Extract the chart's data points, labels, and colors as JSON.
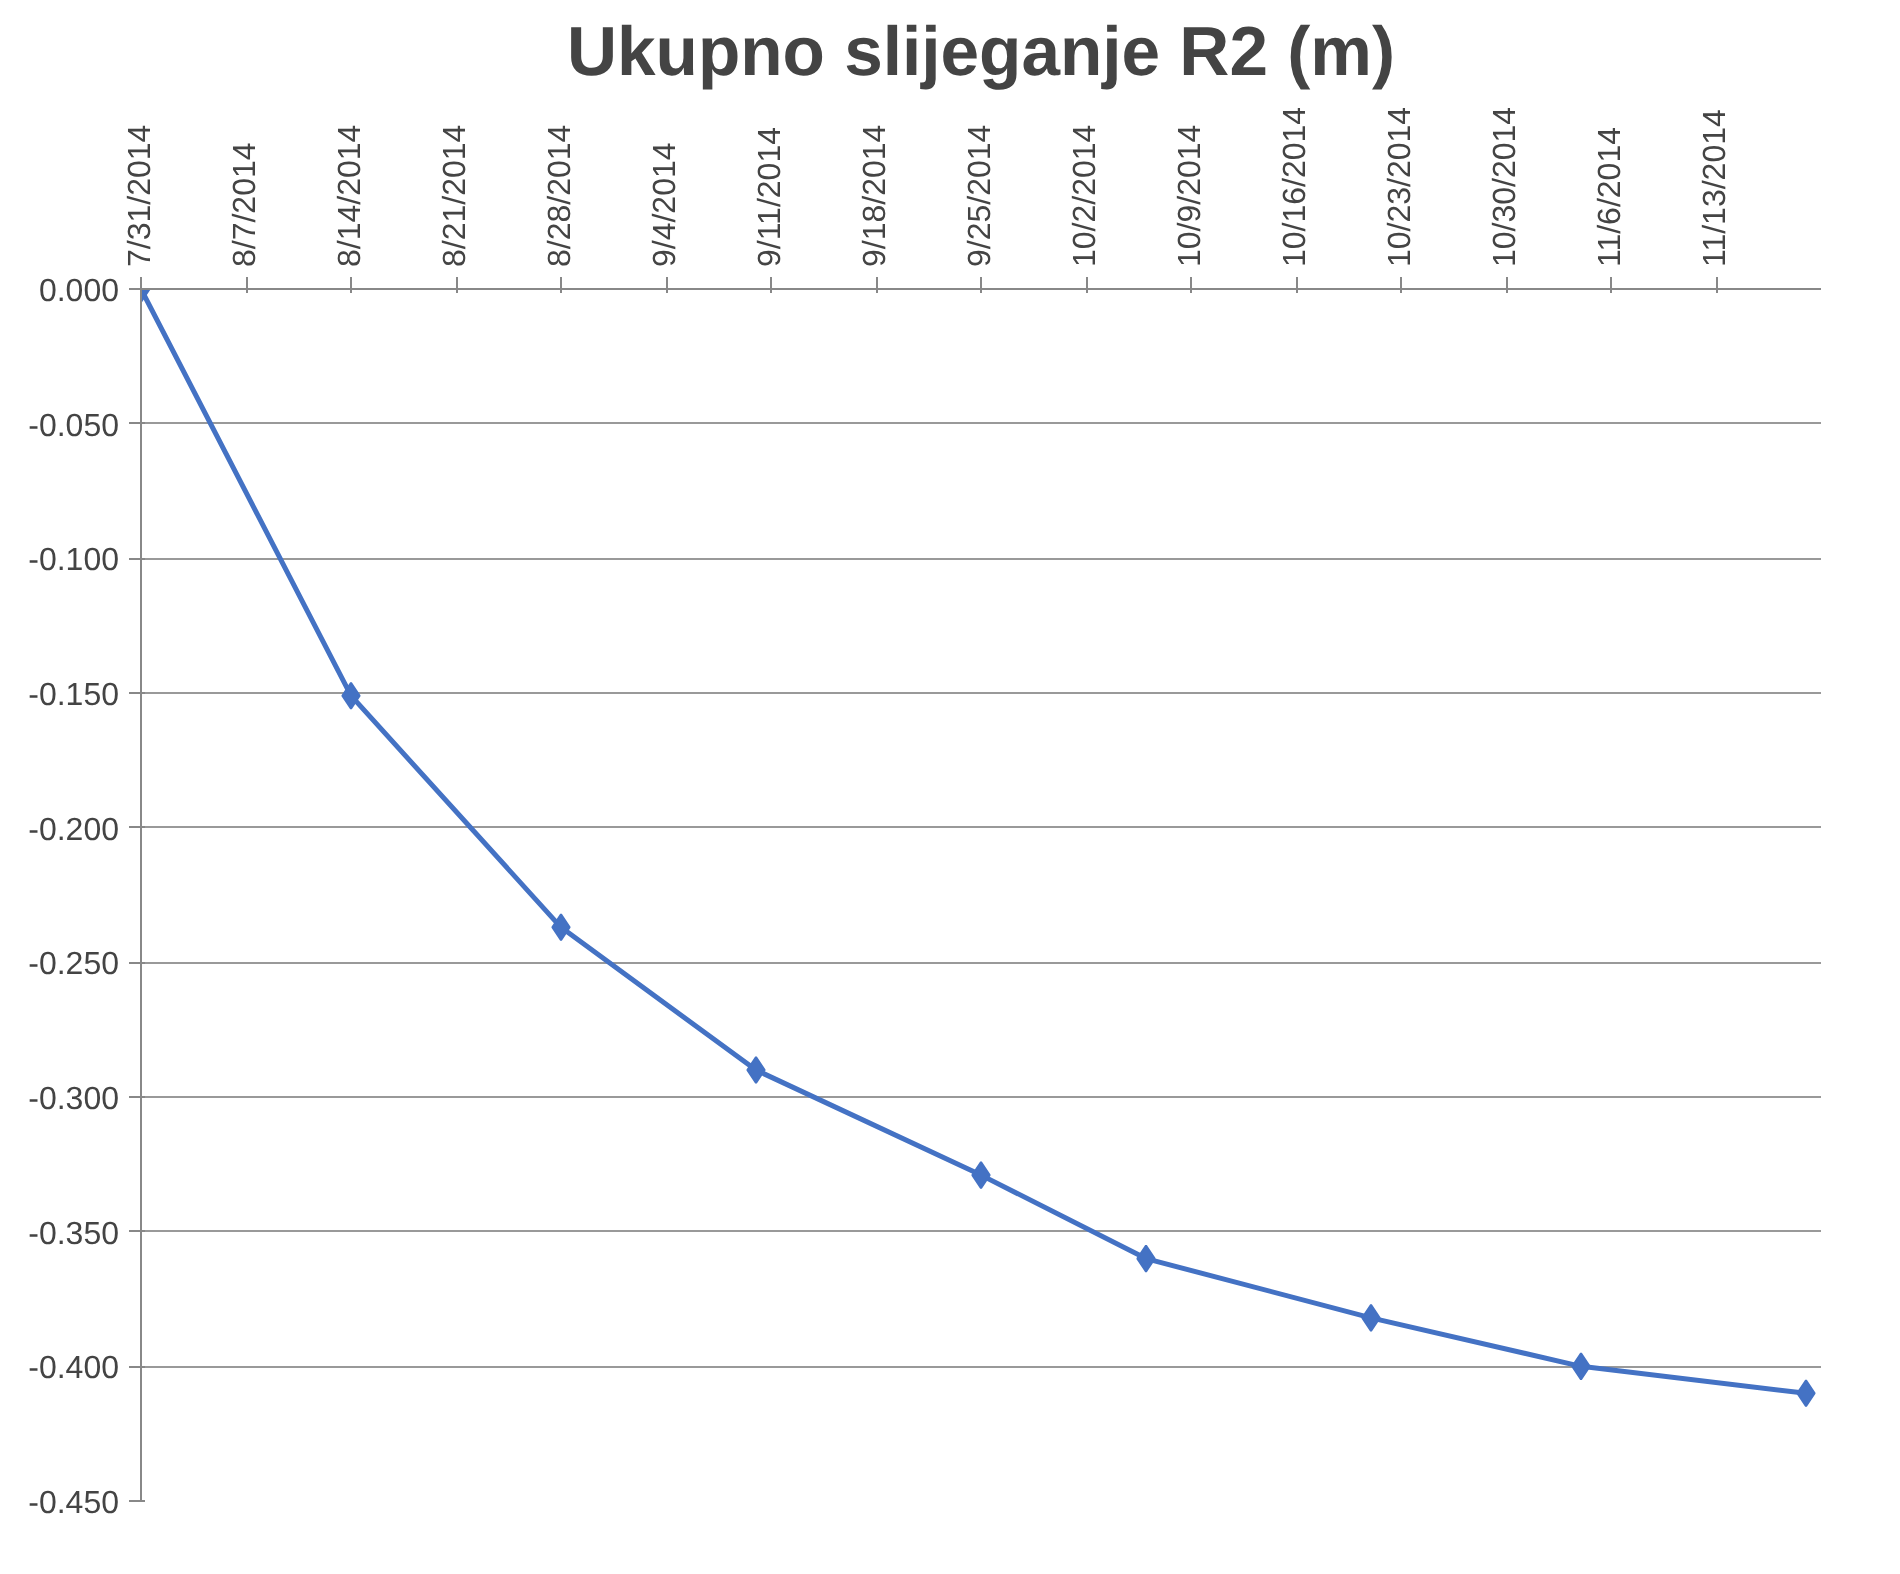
{
  "chart_data": {
    "type": "line",
    "title": "Ukupno slijeganje R2 (m)",
    "x": [
      "2014-07-31",
      "2014-08-14",
      "2014-08-28",
      "2014-09-10",
      "2014-09-25",
      "2014-10-06",
      "2014-10-21",
      "2014-11-04",
      "2014-11-19"
    ],
    "series": [
      {
        "color": "#4472c4",
        "values": [
          0.0,
          -0.151,
          -0.237,
          -0.29,
          -0.329,
          -0.36,
          -0.382,
          -0.4,
          -0.41
        ]
      }
    ],
    "xlim": [
      "2014-07-31",
      "2014-11-20"
    ],
    "xticks": [
      {
        "value": "2014-07-31",
        "label": "7/31/2014"
      },
      {
        "value": "2014-08-07",
        "label": "8/7/2014"
      },
      {
        "value": "2014-08-14",
        "label": "8/14/2014"
      },
      {
        "value": "2014-08-21",
        "label": "8/21/2014"
      },
      {
        "value": "2014-08-28",
        "label": "8/28/2014"
      },
      {
        "value": "2014-09-04",
        "label": "9/4/2014"
      },
      {
        "value": "2014-09-11",
        "label": "9/11/2014"
      },
      {
        "value": "2014-09-18",
        "label": "9/18/2014"
      },
      {
        "value": "2014-09-25",
        "label": "9/25/2014"
      },
      {
        "value": "2014-10-02",
        "label": "10/2/2014"
      },
      {
        "value": "2014-10-09",
        "label": "10/9/2014"
      },
      {
        "value": "2014-10-16",
        "label": "10/16/2014"
      },
      {
        "value": "2014-10-23",
        "label": "10/23/2014"
      },
      {
        "value": "2014-10-30",
        "label": "10/30/2014"
      },
      {
        "value": "2014-11-06",
        "label": "11/6/2014"
      },
      {
        "value": "2014-11-13",
        "label": "11/13/2014"
      }
    ],
    "ylim": [
      -0.45,
      0.0
    ],
    "yticks": [
      {
        "value": 0.0,
        "label": "0.000"
      },
      {
        "value": -0.05,
        "label": "-0.050"
      },
      {
        "value": -0.1,
        "label": "-0.100"
      },
      {
        "value": -0.15,
        "label": "-0.150"
      },
      {
        "value": -0.2,
        "label": "-0.200"
      },
      {
        "value": -0.25,
        "label": "-0.250"
      },
      {
        "value": -0.3,
        "label": "-0.300"
      },
      {
        "value": -0.35,
        "label": "-0.350"
      },
      {
        "value": -0.4,
        "label": "-0.400"
      },
      {
        "value": -0.45,
        "label": "-0.450"
      }
    ],
    "grid": "y",
    "marker": "diamond",
    "line_style": "solid"
  }
}
